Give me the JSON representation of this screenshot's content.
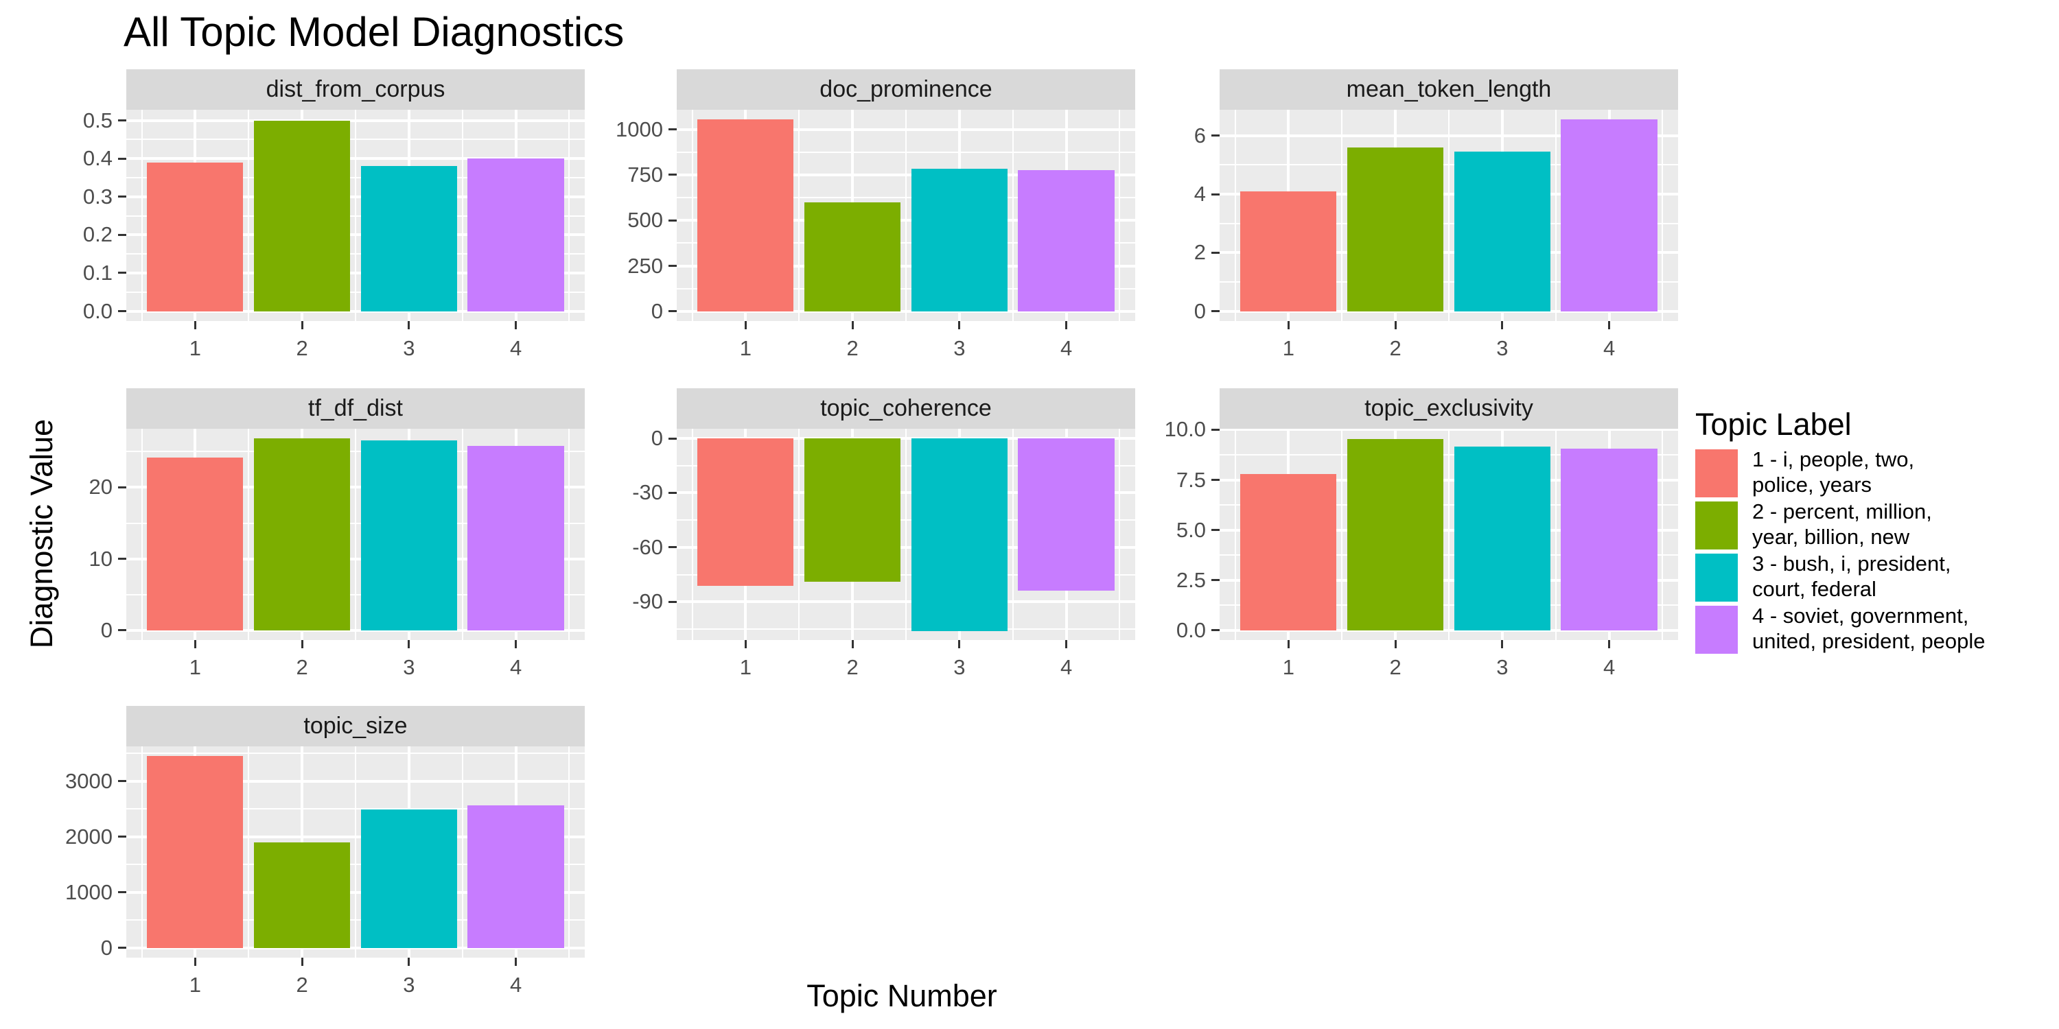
{
  "title": "All Topic Model Diagnostics",
  "axes": {
    "x_title": "Topic Number",
    "y_title": "Diagnostic Value"
  },
  "legend": {
    "title": "Topic Label",
    "entries": [
      {
        "color": "#F8766D",
        "lines": [
          "1 - i, people, two,",
          "police, years"
        ]
      },
      {
        "color": "#7CAE00",
        "lines": [
          "2 - percent, million,",
          "year, billion, new"
        ]
      },
      {
        "color": "#00BFC4",
        "lines": [
          "3 - bush, i, president,",
          "court, federal"
        ]
      },
      {
        "color": "#C77CFF",
        "lines": [
          "4 - soviet, government,",
          "united, president, people"
        ]
      }
    ]
  },
  "chart_data": {
    "type": "bar",
    "faceted": true,
    "title": "All Topic Model Diagnostics",
    "xlabel": "Topic Number",
    "ylabel": "Diagnostic Value",
    "grid": true,
    "legend_position": "right",
    "categories": [
      "1",
      "2",
      "3",
      "4"
    ],
    "bar_colors": [
      "#F8766D",
      "#7CAE00",
      "#00BFC4",
      "#C77CFF"
    ],
    "facets": [
      {
        "name": "dist_from_corpus",
        "values": [
          0.39,
          0.5,
          0.38,
          0.4
        ],
        "ylim": [
          -0.026,
          0.528
        ],
        "yticks": [
          {
            "v": 0.0,
            "label": "0.0"
          },
          {
            "v": 0.1,
            "label": "0.1"
          },
          {
            "v": 0.2,
            "label": "0.2"
          },
          {
            "v": 0.3,
            "label": "0.3"
          },
          {
            "v": 0.4,
            "label": "0.4"
          },
          {
            "v": 0.5,
            "label": "0.5"
          }
        ],
        "yminor": [
          0.05,
          0.15,
          0.25,
          0.35,
          0.45
        ]
      },
      {
        "name": "doc_prominence",
        "values": [
          1055,
          600,
          785,
          775
        ],
        "ylim": [
          -53,
          1108
        ],
        "yticks": [
          {
            "v": 0,
            "label": "0"
          },
          {
            "v": 250,
            "label": "250"
          },
          {
            "v": 500,
            "label": "500"
          },
          {
            "v": 750,
            "label": "750"
          },
          {
            "v": 1000,
            "label": "1000"
          }
        ],
        "yminor": [
          125,
          375,
          625,
          875
        ]
      },
      {
        "name": "mean_token_length",
        "values": [
          4.1,
          5.6,
          5.45,
          6.55
        ],
        "ylim": [
          -0.33,
          6.88
        ],
        "yticks": [
          {
            "v": 0,
            "label": "0"
          },
          {
            "v": 2,
            "label": "2"
          },
          {
            "v": 4,
            "label": "4"
          },
          {
            "v": 6,
            "label": "6"
          }
        ],
        "yminor": [
          1,
          3,
          5
        ]
      },
      {
        "name": "tf_df_dist",
        "values": [
          24.2,
          26.9,
          26.6,
          25.8
        ],
        "ylim": [
          -1.35,
          28.2
        ],
        "yticks": [
          {
            "v": 0,
            "label": "0"
          },
          {
            "v": 10,
            "label": "10"
          },
          {
            "v": 20,
            "label": "20"
          }
        ],
        "yminor": [
          5,
          15,
          25
        ]
      },
      {
        "name": "topic_coherence",
        "values": [
          -81,
          -79,
          -106,
          -84
        ],
        "ylim": [
          -111,
          5.3
        ],
        "yticks": [
          {
            "v": 0,
            "label": "0"
          },
          {
            "v": -30,
            "label": "-30"
          },
          {
            "v": -60,
            "label": "-60"
          },
          {
            "v": -90,
            "label": "-90"
          }
        ],
        "yminor": [
          -15,
          -45,
          -75,
          -105
        ]
      },
      {
        "name": "topic_exclusivity",
        "values": [
          7.8,
          9.55,
          9.15,
          9.05
        ],
        "ylim": [
          -0.48,
          10.05
        ],
        "yticks": [
          {
            "v": 0.0,
            "label": "0.0"
          },
          {
            "v": 2.5,
            "label": "2.5"
          },
          {
            "v": 5.0,
            "label": "5.0"
          },
          {
            "v": 7.5,
            "label": "7.5"
          },
          {
            "v": 10.0,
            "label": "10.0"
          }
        ],
        "yminor": [
          1.25,
          3.75,
          6.25,
          8.75
        ]
      },
      {
        "name": "topic_size",
        "values": [
          3450,
          1900,
          2490,
          2570
        ],
        "ylim": [
          -173,
          3627
        ],
        "yticks": [
          {
            "v": 0,
            "label": "0"
          },
          {
            "v": 1000,
            "label": "1000"
          },
          {
            "v": 2000,
            "label": "2000"
          },
          {
            "v": 3000,
            "label": "3000"
          }
        ],
        "yminor": [
          500,
          1500,
          2500,
          3500
        ]
      }
    ]
  },
  "style": {
    "panel_bg": "#EBEBEB",
    "strip_bg": "#D9D9D9",
    "grid_color": "#FFFFFF",
    "tick_text": "#4D4D4D",
    "strip_text": "#1A1A1A",
    "tick_mark": "#333333"
  }
}
